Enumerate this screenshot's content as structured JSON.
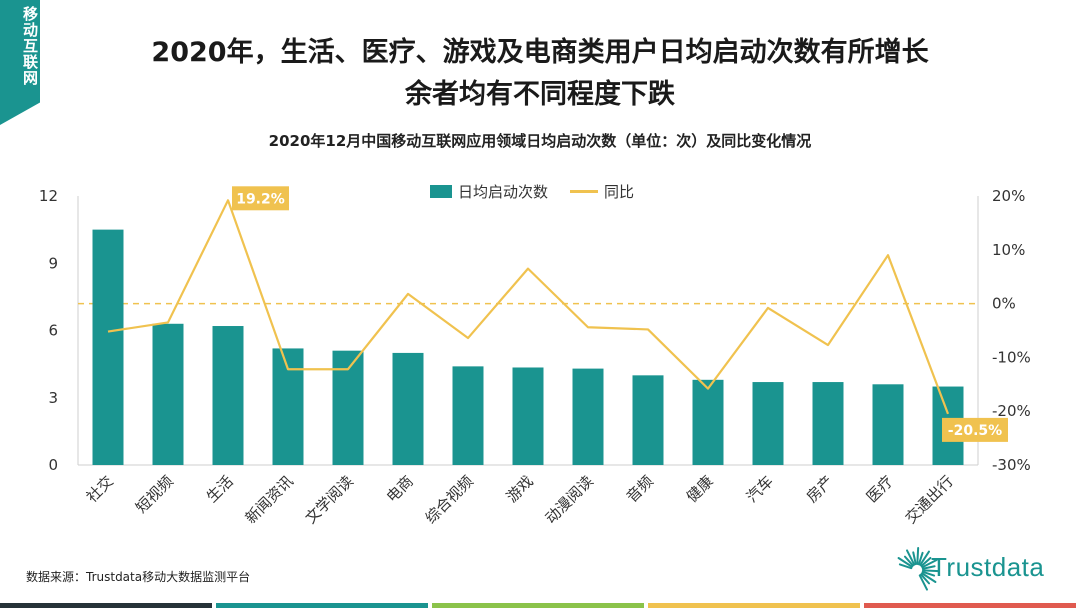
{
  "corner_tab": {
    "label": "移动互联网"
  },
  "title_line1": "2020年，生活、医疗、游戏及电商类用户日均启动次数有所增长",
  "title_line2": "余者均有不同程度下跌",
  "subtitle": "2020年12月中国移动互联网应用领域日均启动次数（单位：次）及同比变化情况",
  "source": "数据来源：Trustdata移动大数据监测平台",
  "logo_text": "Trustdata",
  "colors": {
    "bar": "#1a9490",
    "line": "#f0c24f",
    "brand": "#1a9490"
  },
  "footer_colors": [
    "#263238",
    "#1a9490",
    "#8bc34a",
    "#f0c24f",
    "#e05a4f"
  ],
  "chart_data": {
    "type": "bar+line",
    "title": "2020年12月中国移动互联网应用领域日均启动次数（单位：次）及同比变化情况",
    "categories": [
      "社交",
      "短视频",
      "生活",
      "新闻资讯",
      "文学阅读",
      "电商",
      "综合视频",
      "游戏",
      "动漫阅读",
      "音频",
      "健康",
      "汽车",
      "房产",
      "医疗",
      "交通出行"
    ],
    "series": [
      {
        "name": "日均启动次数",
        "type": "bar",
        "axis": "left",
        "values": [
          10.5,
          6.3,
          6.2,
          5.2,
          5.1,
          5.0,
          4.4,
          4.35,
          4.3,
          4.0,
          3.8,
          3.7,
          3.7,
          3.6,
          3.5
        ]
      },
      {
        "name": "同比",
        "type": "line",
        "axis": "right",
        "unit": "%",
        "values": [
          -5.2,
          -3.5,
          19.2,
          -12.2,
          -12.2,
          1.8,
          -6.4,
          6.5,
          -4.4,
          -4.8,
          -15.8,
          -0.8,
          -7.7,
          9.0,
          -20.5
        ]
      }
    ],
    "left_axis": {
      "min": 0,
      "max": 12,
      "ticks": [
        "0",
        "3",
        "6",
        "9",
        "12"
      ]
    },
    "right_axis": {
      "min": -30,
      "max": 20,
      "ticks": [
        "-30%",
        "-20%",
        "-10%",
        "0%",
        "10%",
        "20%"
      ]
    },
    "zero_reference_line": true,
    "annotations": [
      {
        "category": "生活",
        "label": "19.2%"
      },
      {
        "category": "交通出行",
        "label": "-20.5%"
      }
    ],
    "legend": {
      "position": "top-center"
    },
    "grid": false
  }
}
